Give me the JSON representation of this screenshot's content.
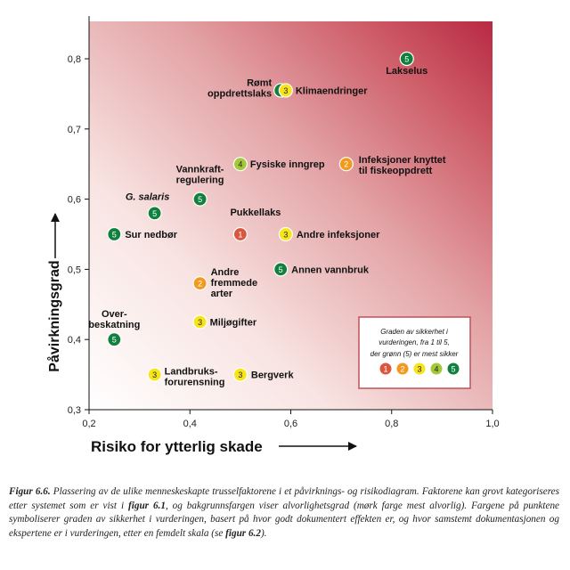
{
  "chart_data": {
    "type": "scatter",
    "xlabel": "Risiko for ytterlig skade",
    "ylabel": "Påvirkningsgrad",
    "xlim": [
      0.2,
      1.0
    ],
    "ylim": [
      0.3,
      0.85
    ],
    "xticks": [
      "0,2",
      "0,4",
      "0,6",
      "0,8",
      "1,0"
    ],
    "yticks": [
      "0,3",
      "0,4",
      "0,5",
      "0,6",
      "0,7",
      "0,8"
    ],
    "background": "gradient from white (low risk, low impact) to dark red (high risk, high impact)",
    "colors": {
      "1": "#d9573f",
      "2": "#f29a1f",
      "3": "#f7e51a",
      "4": "#a3c93a",
      "5": "#11803e"
    },
    "points": [
      {
        "label": "Lakselus",
        "x": 0.83,
        "y": 0.8,
        "grade": 5
      },
      {
        "label": "Rømt oppdrettslaks",
        "x": 0.58,
        "y": 0.755,
        "grade": 5
      },
      {
        "label": "Klimaendringer",
        "x": 0.59,
        "y": 0.755,
        "grade": 3
      },
      {
        "label": "Infeksjoner knyttet til fiskeoppdrett",
        "x": 0.71,
        "y": 0.65,
        "grade": 2
      },
      {
        "label": "Fysiske inngrep",
        "x": 0.5,
        "y": 0.65,
        "grade": 4
      },
      {
        "label": "Vannkraft-regulering",
        "x": 0.42,
        "y": 0.6,
        "grade": 5
      },
      {
        "label": "G. salaris",
        "x": 0.33,
        "y": 0.58,
        "grade": 5
      },
      {
        "label": "Sur nedbør",
        "x": 0.25,
        "y": 0.55,
        "grade": 5
      },
      {
        "label": "Pukkellaks",
        "x": 0.5,
        "y": 0.55,
        "grade": 1
      },
      {
        "label": "Andre infeksjoner",
        "x": 0.59,
        "y": 0.55,
        "grade": 3
      },
      {
        "label": "Annen vannbruk",
        "x": 0.58,
        "y": 0.5,
        "grade": 5
      },
      {
        "label": "Andre fremmede arter",
        "x": 0.42,
        "y": 0.48,
        "grade": 2
      },
      {
        "label": "Miljøgifter",
        "x": 0.42,
        "y": 0.425,
        "grade": 3
      },
      {
        "label": "Over-beskatning",
        "x": 0.25,
        "y": 0.4,
        "grade": 5
      },
      {
        "label": "Landbruks-forurensning",
        "x": 0.33,
        "y": 0.35,
        "grade": 3
      },
      {
        "label": "Bergverk",
        "x": 0.5,
        "y": 0.35,
        "grade": 3
      }
    ],
    "legend": {
      "lines": [
        "Graden av sikkerhet i",
        "vurderingen, fra 1 til 5,",
        "der grønn (5) er mest sikker"
      ],
      "grades": [
        1,
        2,
        3,
        4,
        5
      ],
      "placement": "bottom-right"
    }
  },
  "caption": {
    "prefix": "Figur 6.6.",
    "parts": [
      {
        "t": " Plassering av de ulike menneskeskapte trusselfaktorene i et påvirknings- og risikodiagram. Faktorene kan grovt kategoriseres etter systemet som er vist i ",
        "b": false
      },
      {
        "t": "figur 6.1",
        "b": true
      },
      {
        "t": ", og bakgrunnsfargen viser alvorlighetsgrad (mørk farge mest alvorlig). Fargene på punktene symboliserer graden av sikkerhet i vurderingen, basert på hvor godt dokumentert effekten er, og hvor samstemt dokumentasjonen og ekspertene er i vurderingen, etter en femdelt skala (se ",
        "b": false
      },
      {
        "t": "figur 6.2",
        "b": true
      },
      {
        "t": ").",
        "b": false
      }
    ]
  }
}
